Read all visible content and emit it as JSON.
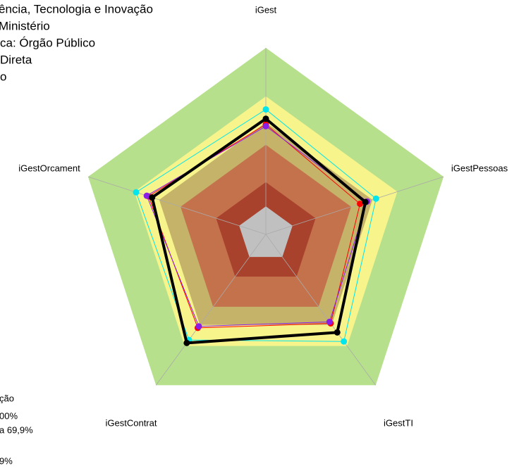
{
  "chart_data": {
    "type": "radar",
    "info_lines": [
      "ência, Tecnologia e Inovação",
      "Ministério",
      "ca: Órgão Público",
      "Direta",
      "o"
    ],
    "legend_lines": [
      "ção",
      "00%",
      "a 69,9%",
      "9%"
    ],
    "categories": [
      "iGest",
      "iGestPessoas",
      "iGestTI",
      "iGestContrat",
      "iGestOrcament"
    ],
    "ylim": [
      0,
      1
    ],
    "bands": [
      {
        "value": 1.0,
        "color": "#b6e08b"
      },
      {
        "value": 0.74,
        "color": "#f7f48c"
      },
      {
        "value": 0.6,
        "color": "#c5b36a"
      },
      {
        "value": 0.48,
        "color": "#c4724c"
      },
      {
        "value": 0.28,
        "color": "#a9422d"
      },
      {
        "value": 0.15,
        "color": "#c0c0c0"
      }
    ],
    "series": [
      {
        "color": "#00e5ee",
        "values": [
          0.67,
          0.62,
          0.71,
          0.7,
          0.73
        ]
      },
      {
        "color": "#ff0000",
        "values": [
          0.59,
          0.53,
          0.59,
          0.62,
          0.66
        ]
      },
      {
        "color": "#8a1ee6",
        "values": [
          0.58,
          0.57,
          0.58,
          0.61,
          0.67
        ]
      },
      {
        "color": "#000000",
        "values": [
          0.62,
          0.56,
          0.65,
          0.72,
          0.64
        ]
      }
    ]
  }
}
